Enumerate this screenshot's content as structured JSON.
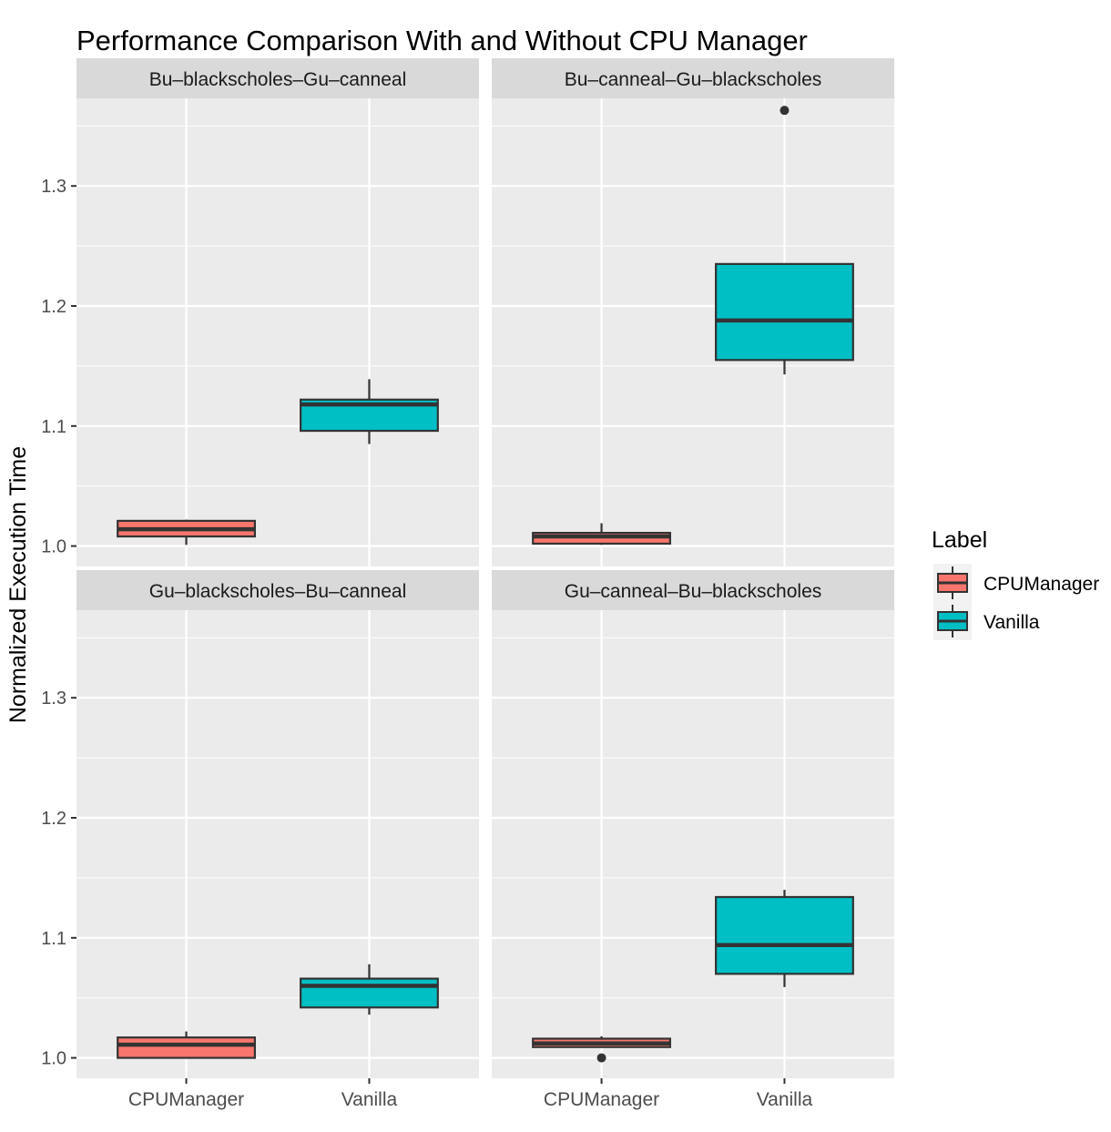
{
  "chart_data": {
    "type": "boxplot",
    "title": "Performance Comparison With and Without CPU Manager",
    "xlabel": "",
    "ylabel": "Normalized Execution Time",
    "ylim": [
      0.983,
      1.373
    ],
    "yticks": [
      "1.0",
      "1.1",
      "1.2",
      "1.3"
    ],
    "ytick_values": [
      1.0,
      1.1,
      1.2,
      1.3
    ],
    "categories": [
      "CPUManager",
      "Vanilla"
    ],
    "grid": true,
    "legend": {
      "title": "Label",
      "position": "right",
      "entries": [
        "CPUManager",
        "Vanilla"
      ]
    },
    "colors": {
      "CPUManager": "#F8766D",
      "Vanilla": "#00BFC4"
    },
    "facets": [
      {
        "title": "Bu–blackscholes–Gu–canneal",
        "boxes": [
          {
            "label": "CPUManager",
            "whisker_low": 1.001,
            "q1": 1.008,
            "median": 1.014,
            "q3": 1.021,
            "whisker_high": 1.022,
            "outliers": []
          },
          {
            "label": "Vanilla",
            "whisker_low": 1.085,
            "q1": 1.096,
            "median": 1.118,
            "q3": 1.122,
            "whisker_high": 1.139,
            "outliers": []
          }
        ]
      },
      {
        "title": "Bu–canneal–Gu–blackscholes",
        "boxes": [
          {
            "label": "CPUManager",
            "whisker_low": 1.001,
            "q1": 1.002,
            "median": 1.008,
            "q3": 1.011,
            "whisker_high": 1.019,
            "outliers": []
          },
          {
            "label": "Vanilla",
            "whisker_low": 1.143,
            "q1": 1.155,
            "median": 1.188,
            "q3": 1.235,
            "whisker_high": 1.235,
            "outliers": [
              1.363
            ]
          }
        ]
      },
      {
        "title": "Gu–blackscholes–Bu–canneal",
        "boxes": [
          {
            "label": "CPUManager",
            "whisker_low": 1.0,
            "q1": 1.0,
            "median": 1.011,
            "q3": 1.017,
            "whisker_high": 1.022,
            "outliers": []
          },
          {
            "label": "Vanilla",
            "whisker_low": 1.036,
            "q1": 1.042,
            "median": 1.06,
            "q3": 1.066,
            "whisker_high": 1.078,
            "outliers": []
          }
        ]
      },
      {
        "title": "Gu–canneal–Bu–blackscholes",
        "boxes": [
          {
            "label": "CPUManager",
            "whisker_low": 1.009,
            "q1": 1.009,
            "median": 1.012,
            "q3": 1.016,
            "whisker_high": 1.018,
            "outliers": [
              1.0
            ]
          },
          {
            "label": "Vanilla",
            "whisker_low": 1.059,
            "q1": 1.07,
            "median": 1.094,
            "q3": 1.134,
            "whisker_high": 1.14,
            "outliers": []
          }
        ]
      }
    ]
  }
}
